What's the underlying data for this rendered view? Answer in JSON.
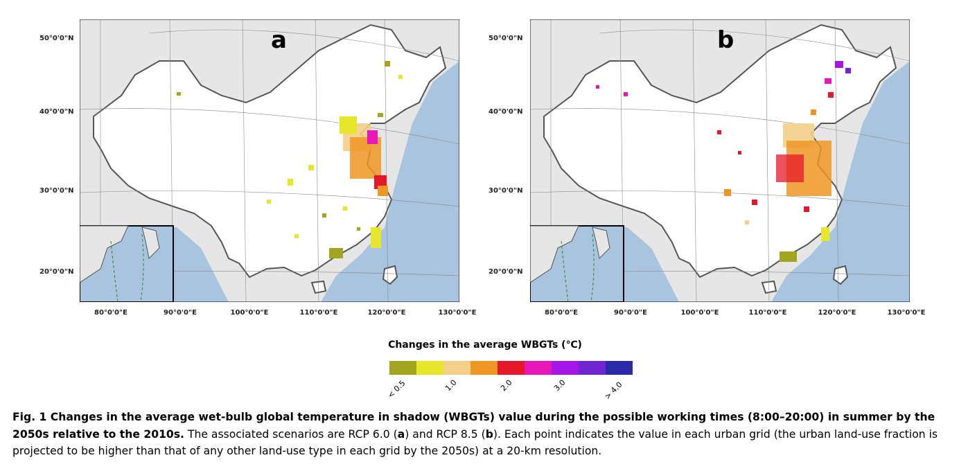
{
  "panels": [
    {
      "id": "a",
      "letter": "a"
    },
    {
      "id": "b",
      "letter": "b"
    }
  ],
  "axes": {
    "y_labels": [
      "50°0'0\"N",
      "40°0'0\"N",
      "30°0'0\"N",
      "20°0'0\"N"
    ],
    "x_labels": [
      "80°0'0\"E",
      "90°0'0\"E",
      "100°0'0\"E",
      "110°0'0\"E",
      "120°0'0\"E",
      "130°0'0\"E"
    ]
  },
  "legend": {
    "title": "Changes in the average WBGTs (℃)",
    "colors": [
      "#a3a51e",
      "#e6e62a",
      "#f3cf8a",
      "#ef9624",
      "#e4182a",
      "#e815b8",
      "#a415e8",
      "#6f26d0",
      "#2a2aa8"
    ],
    "ticks": [
      "< 0.5",
      "1.0",
      "2.0",
      "3.0",
      "> 4.0"
    ]
  },
  "colors": {
    "ocean": "#a9c4de",
    "land_outside": "#e6e6e6",
    "china_fill": "#ffffff",
    "border": "#555555"
  },
  "caption": {
    "bold": "Fig. 1  Changes in the average wet-bulb global temperature in shadow (WBGTs) value during the possible working times (8:00–20:00) in summer by the 2050s relative to the 2010s.",
    "text_1": " The associated scenarios are RCP 6.0 (",
    "a": "a",
    "text_2": ") and RCP 8.5 (",
    "b": "b",
    "text_3": "). Each point indicates the value in each urban grid (the urban land-use fraction is projected to be higher than that of any other land-use type in each grid by the 2050s) at a 20-km resolution."
  }
}
